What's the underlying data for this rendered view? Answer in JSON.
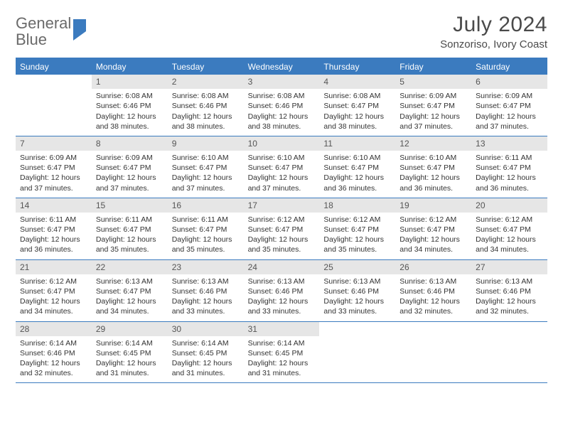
{
  "brand": {
    "word1": "General",
    "word2": "Blue"
  },
  "title": "July 2024",
  "location": "Sonzoriso, Ivory Coast",
  "colors": {
    "accent": "#3b7bbf",
    "dayNumBg": "#e6e6e6"
  },
  "daysOfWeek": [
    "Sunday",
    "Monday",
    "Tuesday",
    "Wednesday",
    "Thursday",
    "Friday",
    "Saturday"
  ],
  "weeks": [
    [
      {
        "empty": true
      },
      {
        "num": "1",
        "sunrise": "Sunrise: 6:08 AM",
        "sunset": "Sunset: 6:46 PM",
        "daylight1": "Daylight: 12 hours",
        "daylight2": "and 38 minutes."
      },
      {
        "num": "2",
        "sunrise": "Sunrise: 6:08 AM",
        "sunset": "Sunset: 6:46 PM",
        "daylight1": "Daylight: 12 hours",
        "daylight2": "and 38 minutes."
      },
      {
        "num": "3",
        "sunrise": "Sunrise: 6:08 AM",
        "sunset": "Sunset: 6:46 PM",
        "daylight1": "Daylight: 12 hours",
        "daylight2": "and 38 minutes."
      },
      {
        "num": "4",
        "sunrise": "Sunrise: 6:08 AM",
        "sunset": "Sunset: 6:47 PM",
        "daylight1": "Daylight: 12 hours",
        "daylight2": "and 38 minutes."
      },
      {
        "num": "5",
        "sunrise": "Sunrise: 6:09 AM",
        "sunset": "Sunset: 6:47 PM",
        "daylight1": "Daylight: 12 hours",
        "daylight2": "and 37 minutes."
      },
      {
        "num": "6",
        "sunrise": "Sunrise: 6:09 AM",
        "sunset": "Sunset: 6:47 PM",
        "daylight1": "Daylight: 12 hours",
        "daylight2": "and 37 minutes."
      }
    ],
    [
      {
        "num": "7",
        "sunrise": "Sunrise: 6:09 AM",
        "sunset": "Sunset: 6:47 PM",
        "daylight1": "Daylight: 12 hours",
        "daylight2": "and 37 minutes."
      },
      {
        "num": "8",
        "sunrise": "Sunrise: 6:09 AM",
        "sunset": "Sunset: 6:47 PM",
        "daylight1": "Daylight: 12 hours",
        "daylight2": "and 37 minutes."
      },
      {
        "num": "9",
        "sunrise": "Sunrise: 6:10 AM",
        "sunset": "Sunset: 6:47 PM",
        "daylight1": "Daylight: 12 hours",
        "daylight2": "and 37 minutes."
      },
      {
        "num": "10",
        "sunrise": "Sunrise: 6:10 AM",
        "sunset": "Sunset: 6:47 PM",
        "daylight1": "Daylight: 12 hours",
        "daylight2": "and 37 minutes."
      },
      {
        "num": "11",
        "sunrise": "Sunrise: 6:10 AM",
        "sunset": "Sunset: 6:47 PM",
        "daylight1": "Daylight: 12 hours",
        "daylight2": "and 36 minutes."
      },
      {
        "num": "12",
        "sunrise": "Sunrise: 6:10 AM",
        "sunset": "Sunset: 6:47 PM",
        "daylight1": "Daylight: 12 hours",
        "daylight2": "and 36 minutes."
      },
      {
        "num": "13",
        "sunrise": "Sunrise: 6:11 AM",
        "sunset": "Sunset: 6:47 PM",
        "daylight1": "Daylight: 12 hours",
        "daylight2": "and 36 minutes."
      }
    ],
    [
      {
        "num": "14",
        "sunrise": "Sunrise: 6:11 AM",
        "sunset": "Sunset: 6:47 PM",
        "daylight1": "Daylight: 12 hours",
        "daylight2": "and 36 minutes."
      },
      {
        "num": "15",
        "sunrise": "Sunrise: 6:11 AM",
        "sunset": "Sunset: 6:47 PM",
        "daylight1": "Daylight: 12 hours",
        "daylight2": "and 35 minutes."
      },
      {
        "num": "16",
        "sunrise": "Sunrise: 6:11 AM",
        "sunset": "Sunset: 6:47 PM",
        "daylight1": "Daylight: 12 hours",
        "daylight2": "and 35 minutes."
      },
      {
        "num": "17",
        "sunrise": "Sunrise: 6:12 AM",
        "sunset": "Sunset: 6:47 PM",
        "daylight1": "Daylight: 12 hours",
        "daylight2": "and 35 minutes."
      },
      {
        "num": "18",
        "sunrise": "Sunrise: 6:12 AM",
        "sunset": "Sunset: 6:47 PM",
        "daylight1": "Daylight: 12 hours",
        "daylight2": "and 35 minutes."
      },
      {
        "num": "19",
        "sunrise": "Sunrise: 6:12 AM",
        "sunset": "Sunset: 6:47 PM",
        "daylight1": "Daylight: 12 hours",
        "daylight2": "and 34 minutes."
      },
      {
        "num": "20",
        "sunrise": "Sunrise: 6:12 AM",
        "sunset": "Sunset: 6:47 PM",
        "daylight1": "Daylight: 12 hours",
        "daylight2": "and 34 minutes."
      }
    ],
    [
      {
        "num": "21",
        "sunrise": "Sunrise: 6:12 AM",
        "sunset": "Sunset: 6:47 PM",
        "daylight1": "Daylight: 12 hours",
        "daylight2": "and 34 minutes."
      },
      {
        "num": "22",
        "sunrise": "Sunrise: 6:13 AM",
        "sunset": "Sunset: 6:47 PM",
        "daylight1": "Daylight: 12 hours",
        "daylight2": "and 34 minutes."
      },
      {
        "num": "23",
        "sunrise": "Sunrise: 6:13 AM",
        "sunset": "Sunset: 6:46 PM",
        "daylight1": "Daylight: 12 hours",
        "daylight2": "and 33 minutes."
      },
      {
        "num": "24",
        "sunrise": "Sunrise: 6:13 AM",
        "sunset": "Sunset: 6:46 PM",
        "daylight1": "Daylight: 12 hours",
        "daylight2": "and 33 minutes."
      },
      {
        "num": "25",
        "sunrise": "Sunrise: 6:13 AM",
        "sunset": "Sunset: 6:46 PM",
        "daylight1": "Daylight: 12 hours",
        "daylight2": "and 33 minutes."
      },
      {
        "num": "26",
        "sunrise": "Sunrise: 6:13 AM",
        "sunset": "Sunset: 6:46 PM",
        "daylight1": "Daylight: 12 hours",
        "daylight2": "and 32 minutes."
      },
      {
        "num": "27",
        "sunrise": "Sunrise: 6:13 AM",
        "sunset": "Sunset: 6:46 PM",
        "daylight1": "Daylight: 12 hours",
        "daylight2": "and 32 minutes."
      }
    ],
    [
      {
        "num": "28",
        "sunrise": "Sunrise: 6:14 AM",
        "sunset": "Sunset: 6:46 PM",
        "daylight1": "Daylight: 12 hours",
        "daylight2": "and 32 minutes."
      },
      {
        "num": "29",
        "sunrise": "Sunrise: 6:14 AM",
        "sunset": "Sunset: 6:45 PM",
        "daylight1": "Daylight: 12 hours",
        "daylight2": "and 31 minutes."
      },
      {
        "num": "30",
        "sunrise": "Sunrise: 6:14 AM",
        "sunset": "Sunset: 6:45 PM",
        "daylight1": "Daylight: 12 hours",
        "daylight2": "and 31 minutes."
      },
      {
        "num": "31",
        "sunrise": "Sunrise: 6:14 AM",
        "sunset": "Sunset: 6:45 PM",
        "daylight1": "Daylight: 12 hours",
        "daylight2": "and 31 minutes."
      },
      {
        "empty": true
      },
      {
        "empty": true
      },
      {
        "empty": true
      }
    ]
  ]
}
